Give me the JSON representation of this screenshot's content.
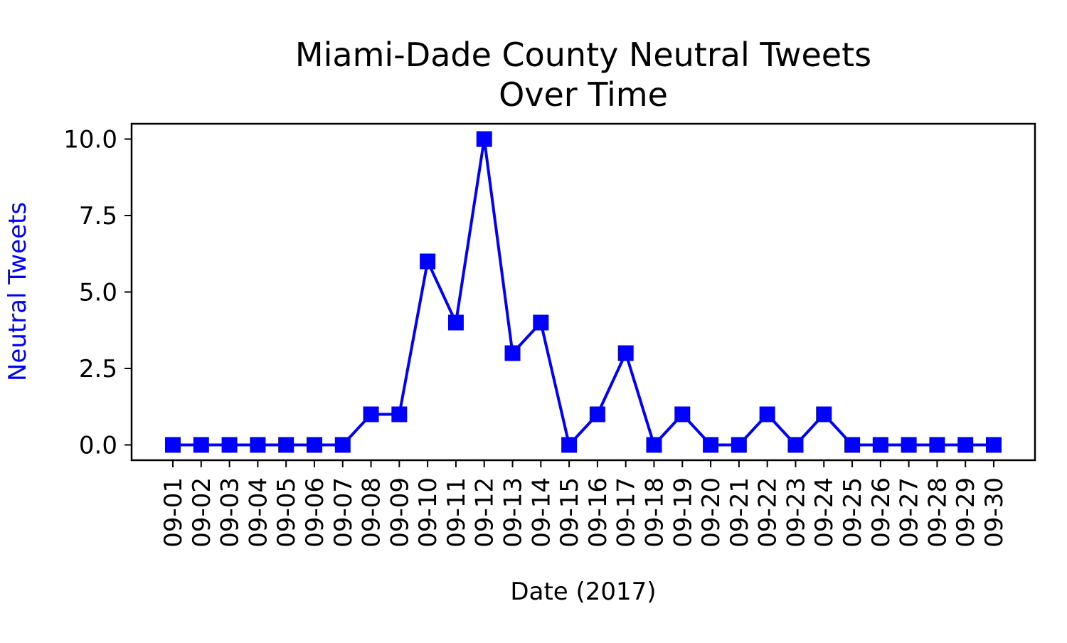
{
  "chart_data": {
    "type": "line",
    "title": "Miami-Dade County Neutral Tweets",
    "title_line2": "Over Time",
    "xlabel": "Date (2017)",
    "ylabel": "Neutral Tweets",
    "categories": [
      "09-01",
      "09-02",
      "09-03",
      "09-04",
      "09-05",
      "09-06",
      "09-07",
      "09-08",
      "09-09",
      "09-10",
      "09-11",
      "09-12",
      "09-13",
      "09-14",
      "09-15",
      "09-16",
      "09-17",
      "09-18",
      "09-19",
      "09-20",
      "09-21",
      "09-22",
      "09-23",
      "09-24",
      "09-25",
      "09-26",
      "09-27",
      "09-28",
      "09-29",
      "09-30"
    ],
    "values": [
      0,
      0,
      0,
      0,
      0,
      0,
      0,
      1,
      1,
      6,
      4,
      10,
      3,
      4,
      0,
      1,
      3,
      0,
      1,
      0,
      0,
      1,
      0,
      1,
      0,
      0,
      0,
      0,
      0,
      0
    ],
    "ylim": [
      -0.5,
      10.5
    ],
    "yticks": [
      0.0,
      2.5,
      5.0,
      7.5,
      10.0
    ],
    "ytick_labels": [
      "0.0",
      "2.5",
      "5.0",
      "7.5",
      "10.0"
    ],
    "grid": false,
    "marker": "square",
    "colors": {
      "line": "#0000ff",
      "ylabel": "#0000ff",
      "axes": "#000000"
    }
  }
}
